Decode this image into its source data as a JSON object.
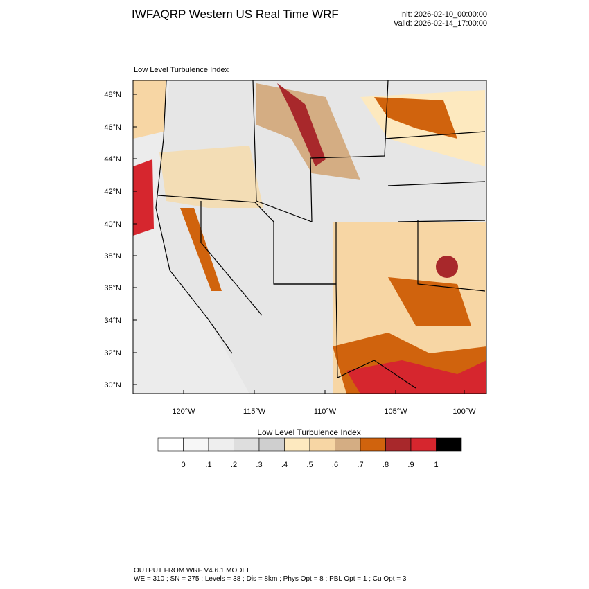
{
  "header": {
    "title": "IWFAQRP Western US Real Time WRF",
    "init": "Init: 2026-02-10_00:00:00",
    "valid": "Valid: 2026-02-14_17:00:00"
  },
  "map": {
    "label": "Low Level Turbulence Index",
    "lat_labels": [
      "48°N",
      "46°N",
      "44°N",
      "42°N",
      "40°N",
      "38°N",
      "36°N",
      "34°N",
      "32°N",
      "30°N"
    ],
    "lon_labels": [
      "120°W",
      "115°W",
      "110°W",
      "105°W",
      "100°W"
    ]
  },
  "colorbar": {
    "title": "Low Level Turbulence Index",
    "colors": [
      "#ffffff",
      "#f7f7f7",
      "#eeeeee",
      "#dedede",
      "#cfcfcf",
      "#fde9bf",
      "#f7d6a4",
      "#d4ad83",
      "#d0630d",
      "#a8282b",
      "#d6262e",
      "#000000"
    ],
    "labels": [
      "0",
      ".1",
      ".2",
      ".3",
      ".4",
      ".5",
      ".6",
      ".7",
      ".8",
      ".9",
      "1"
    ]
  },
  "footer": {
    "line1": "OUTPUT FROM WRF V4.6.1 MODEL",
    "line2": "WE = 310 ; SN = 275 ; Levels = 38 ; Dis = 8km ; Phys Opt = 8 ; PBL Opt = 1 ; Cu Opt = 3"
  }
}
